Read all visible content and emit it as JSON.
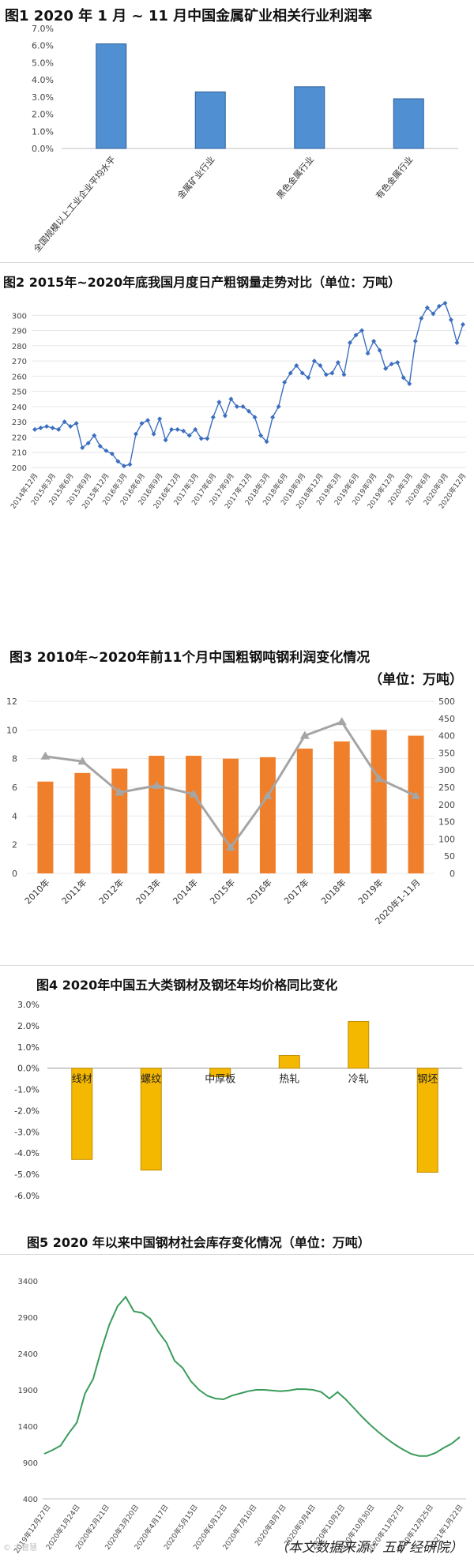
{
  "footer": {
    "source": "（本文数据来源：五矿经研院）",
    "watermark": "© 大智慧"
  },
  "chart_data": [
    {
      "type": "bar",
      "title": "图1  2020 年 1 月 ~ 11 月中国金属矿业相关行业利润率",
      "categories": [
        "全国规模以上工业企业平均水平",
        "金属矿业行业",
        "黑色金属行业",
        "有色金属行业"
      ],
      "values": [
        6.1,
        3.3,
        3.6,
        2.9
      ],
      "ylim": [
        0,
        7
      ],
      "yticks": [
        "0.0%",
        "1.0%",
        "2.0%",
        "3.0%",
        "4.0%",
        "5.0%",
        "6.0%",
        "7.0%"
      ],
      "color": "#4f8fd2"
    },
    {
      "type": "line",
      "title": "图2  2015年~2020年底我国月度日产粗钢量走势对比（单位：万吨）",
      "ylim": [
        200,
        310
      ],
      "yticks": [
        "200",
        "210",
        "220",
        "230",
        "240",
        "250",
        "260",
        "270",
        "280",
        "290",
        "300"
      ],
      "xticks": [
        "2014年12月",
        "2015年3月",
        "2015年6月",
        "2015年9月",
        "2015年12月",
        "2016年3月",
        "2016年6月",
        "2016年9月",
        "2016年12月",
        "2017年3月",
        "2017年6月",
        "2017年9月",
        "2017年12月",
        "2018年3月",
        "2018年6月",
        "2018年9月",
        "2018年12月",
        "2019年3月",
        "2019年6月",
        "2019年9月",
        "2019年12月",
        "2020年3月",
        "2020年6月",
        "2020年9月",
        "2020年12月"
      ],
      "values": [
        225,
        226,
        227,
        226,
        225,
        230,
        227,
        229,
        213,
        216,
        221,
        214,
        211,
        209,
        204,
        201,
        202,
        222,
        229,
        231,
        222,
        232,
        218,
        225,
        225,
        224,
        221,
        225,
        219,
        219,
        233,
        243,
        234,
        245,
        240,
        240,
        237,
        233,
        221,
        217,
        233,
        240,
        256,
        262,
        267,
        262,
        259,
        270,
        267,
        261,
        262,
        269,
        261,
        282,
        287,
        290,
        275,
        283,
        277,
        265,
        268,
        269,
        259,
        255,
        283,
        298,
        305,
        301,
        306,
        308,
        297,
        282,
        294
      ],
      "color": "#3c6ec0"
    },
    {
      "type": "bar",
      "title": "图3  2010年~2020年前11个月中国粗钢吨钢利润变化情况",
      "subtitle": "（单位：万吨）",
      "categories": [
        "2010年",
        "2011年",
        "2012年",
        "2013年",
        "2014年",
        "2015年",
        "2016年",
        "2017年",
        "2018年",
        "2019年",
        "2020年1-11月"
      ],
      "series": [
        {
          "name": "bars",
          "values": [
            6.4,
            7.0,
            7.3,
            8.2,
            8.2,
            8.0,
            8.1,
            8.7,
            9.2,
            10.0,
            9.6
          ],
          "axis": "left",
          "color": "#ef7f2a"
        },
        {
          "name": "line",
          "values": [
            340,
            325,
            235,
            255,
            230,
            75,
            225,
            400,
            440,
            275,
            225
          ],
          "axis": "right",
          "color": "#a5a5a5"
        }
      ],
      "ylim": [
        0,
        12
      ],
      "ylim_right": [
        0,
        500
      ],
      "yticks": [
        "0",
        "2",
        "4",
        "6",
        "8",
        "10",
        "12"
      ],
      "yticks_right": [
        "0",
        "50",
        "100",
        "150",
        "200",
        "250",
        "300",
        "350",
        "400",
        "450",
        "500"
      ]
    },
    {
      "type": "bar",
      "title": "图4  2020年中国五大类钢材及钢坯年均价格同比变化",
      "categories": [
        "线材",
        "螺纹",
        "中厚板",
        "热轧",
        "冷轧",
        "钢坯"
      ],
      "values": [
        -4.3,
        -4.8,
        -0.4,
        0.6,
        2.2,
        -4.9
      ],
      "ylim": [
        -6,
        3
      ],
      "yticks": [
        "3.0%",
        "2.0%",
        "1.0%",
        "0.0%",
        "-1.0%",
        "-2.0%",
        "-3.0%",
        "-4.0%",
        "-5.0%",
        "-6.0%"
      ],
      "color": "#f5b800"
    },
    {
      "type": "line",
      "title": "图5  2020 年以来中国钢材社会库存变化情况（单位：万吨）",
      "ylim": [
        400,
        3400
      ],
      "yticks": [
        "400",
        "900",
        "1400",
        "1900",
        "2400",
        "2900",
        "3400"
      ],
      "xticks": [
        "2019年12月27日",
        "2020年1月24日",
        "2020年2月21日",
        "2020年3月20日",
        "2020年4月17日",
        "2020年5月15日",
        "2020年6月12日",
        "2020年7月10日",
        "2020年8月7日",
        "2020年9月4日",
        "2020年10月2日",
        "2020年10月30日",
        "2020年11月27日",
        "2020年12月25日",
        "2021年1月22日"
      ],
      "values": [
        1020,
        1070,
        1130,
        1300,
        1450,
        1850,
        2050,
        2450,
        2800,
        3050,
        3180,
        2980,
        2960,
        2880,
        2700,
        2550,
        2300,
        2200,
        2020,
        1900,
        1820,
        1780,
        1770,
        1820,
        1850,
        1880,
        1900,
        1900,
        1890,
        1880,
        1890,
        1910,
        1910,
        1900,
        1870,
        1780,
        1870,
        1770,
        1650,
        1530,
        1420,
        1320,
        1230,
        1150,
        1080,
        1020,
        990,
        990,
        1030,
        1100,
        1160,
        1250
      ],
      "color": "#3a9b5a"
    }
  ]
}
